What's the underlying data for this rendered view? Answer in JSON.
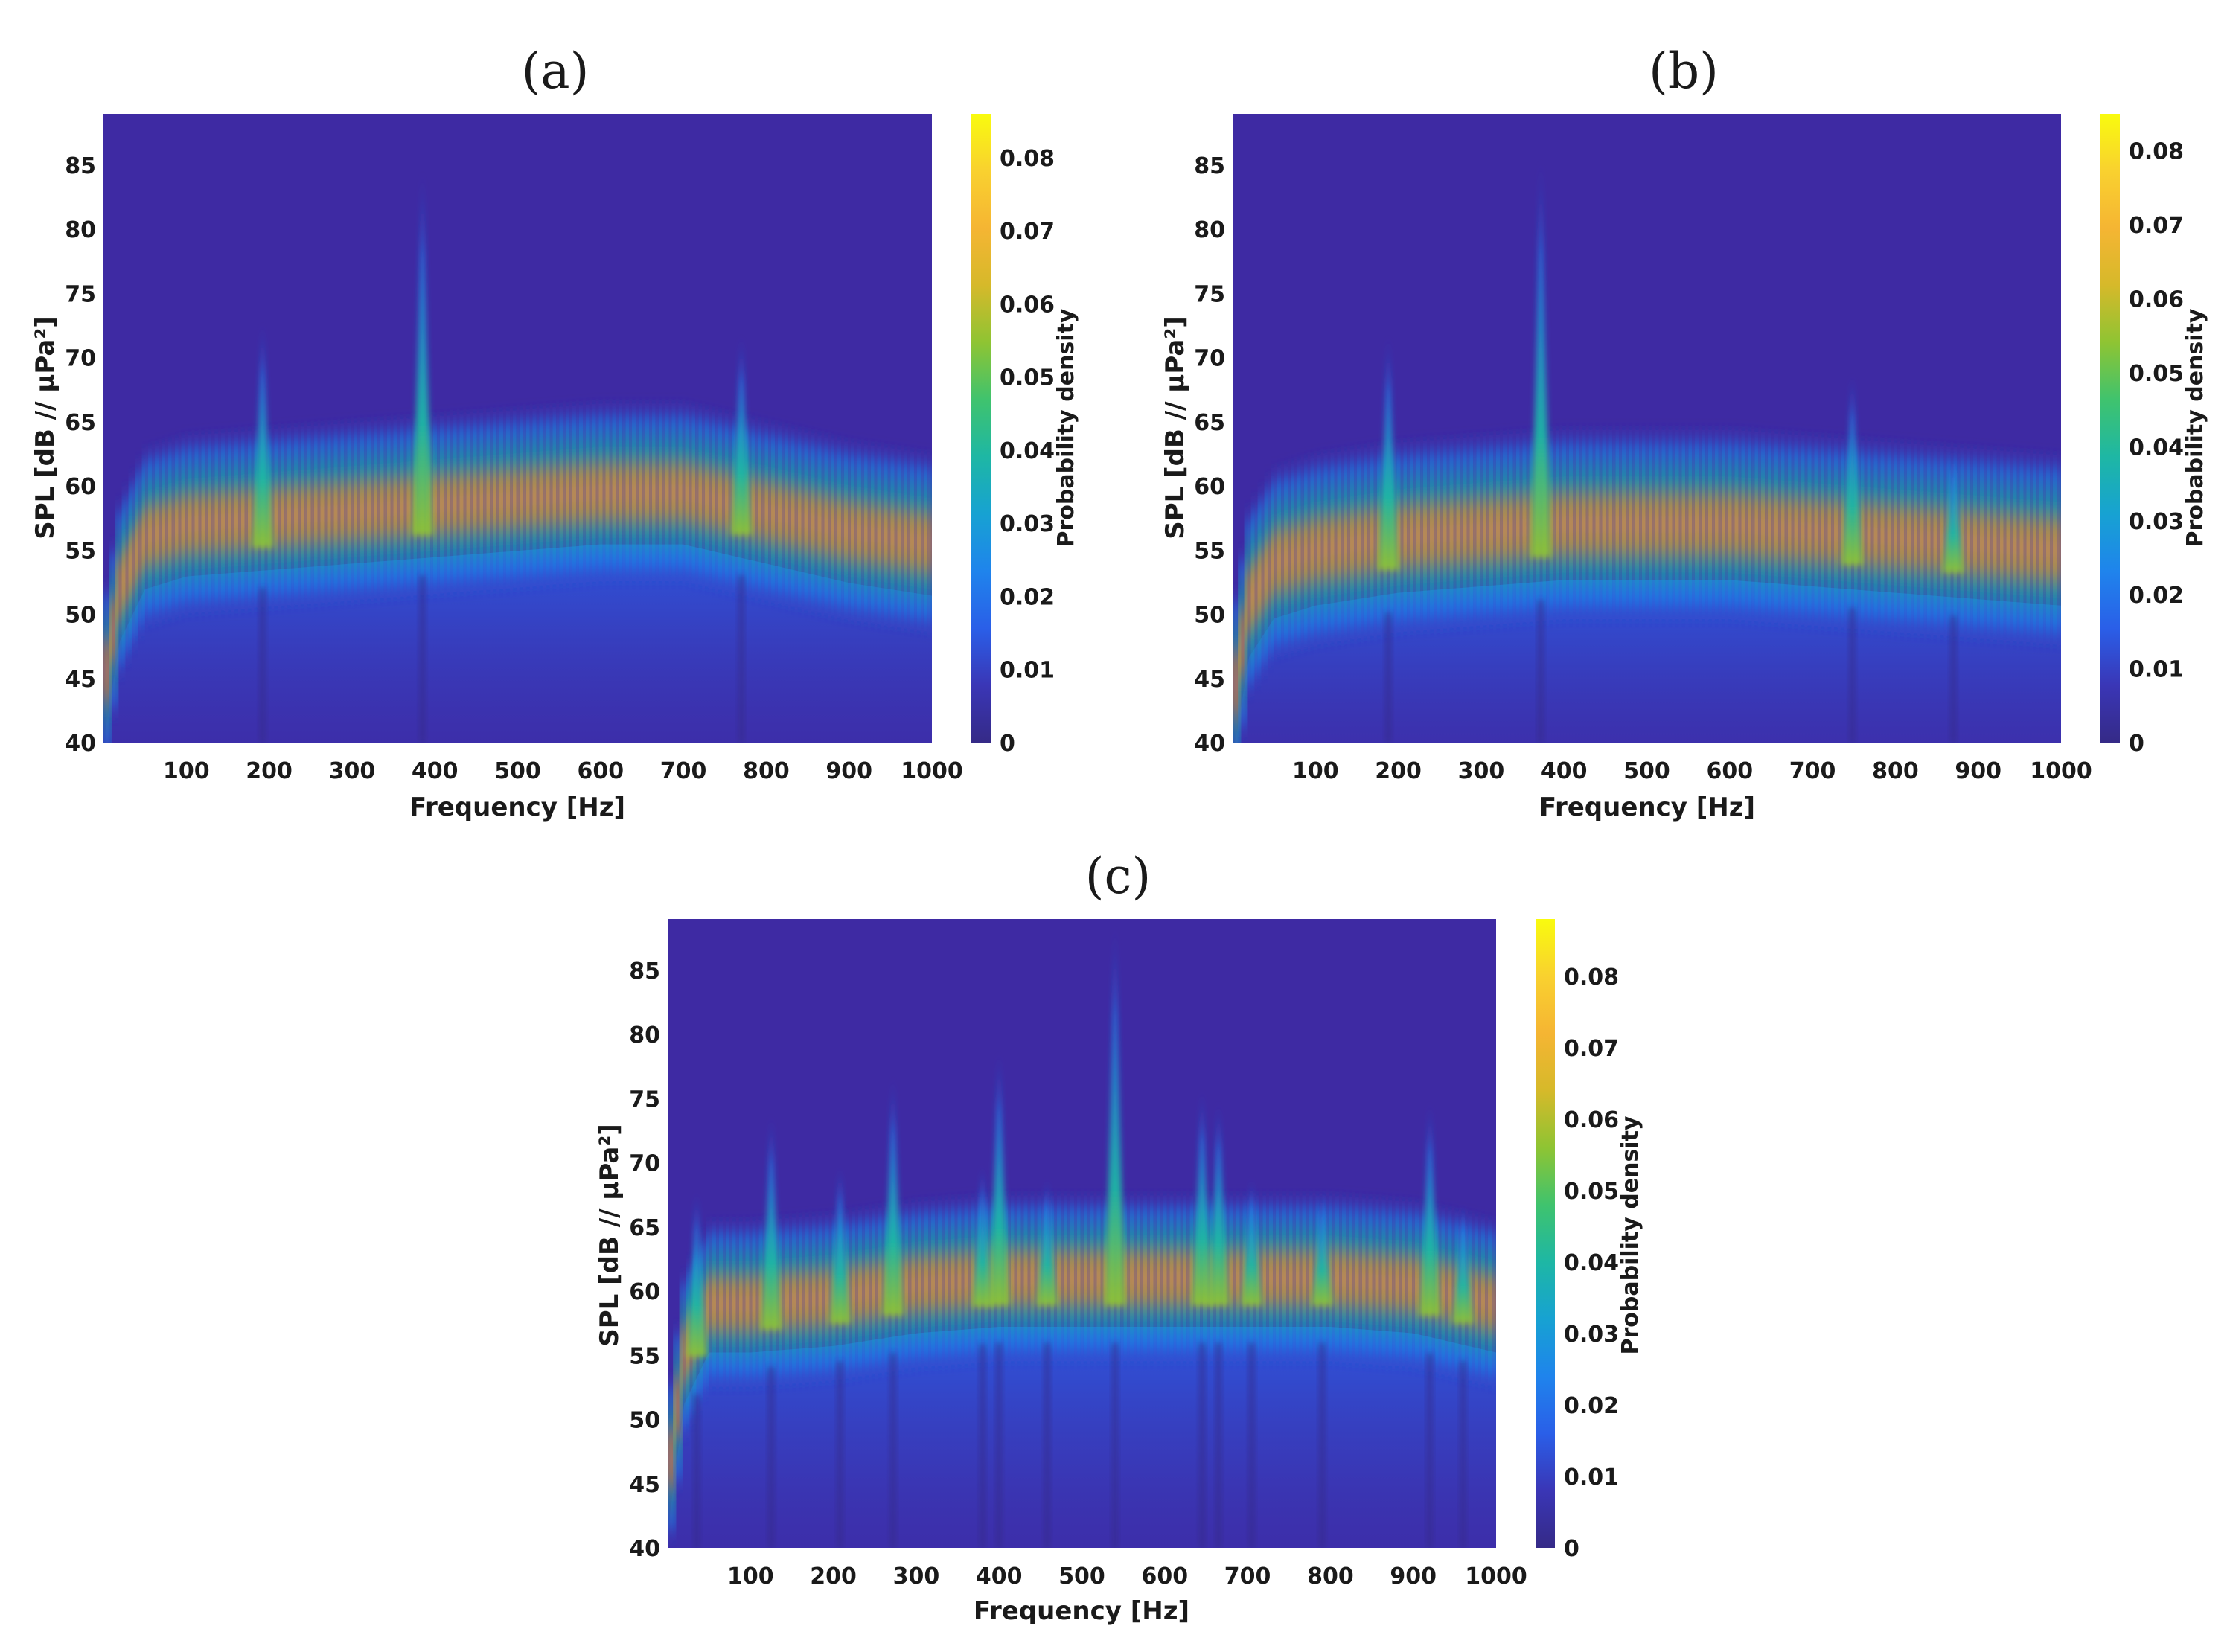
{
  "colors": {
    "background": "#3e2aa3",
    "parula": [
      "#352a87",
      "#3a36b6",
      "#2a5fe8",
      "#1f84ec",
      "#17a2d2",
      "#1eb7a4",
      "#3fc36e",
      "#8ec433",
      "#d6b92a",
      "#f5b533",
      "#f9d12f",
      "#f9fb0e"
    ]
  },
  "chart_data": [
    {
      "panel": "a",
      "type": "heatmap",
      "title": "(a)",
      "xlabel": "Frequency [Hz]",
      "ylabel": "SPL [dB // μPa²]",
      "xlim": [
        0,
        1000
      ],
      "ylim": [
        40,
        89
      ],
      "x_ticks": [
        "100",
        "200",
        "300",
        "400",
        "500",
        "600",
        "700",
        "800",
        "900",
        "1000"
      ],
      "y_ticks": [
        "40",
        "45",
        "50",
        "55",
        "60",
        "65",
        "70",
        "75",
        "80",
        "85"
      ],
      "colorbar": {
        "label": "Probability density",
        "range": [
          0,
          0.086
        ],
        "ticks": [
          "0",
          "0.01",
          "0.02",
          "0.03",
          "0.04",
          "0.05",
          "0.06",
          "0.07",
          "0.08"
        ]
      },
      "ridge": [
        [
          0,
          44
        ],
        [
          20,
          52
        ],
        [
          50,
          56
        ],
        [
          100,
          57
        ],
        [
          200,
          57.5
        ],
        [
          300,
          58
        ],
        [
          400,
          58.5
        ],
        [
          500,
          59
        ],
        [
          600,
          59.5
        ],
        [
          700,
          59.5
        ],
        [
          800,
          58
        ],
        [
          900,
          56.5
        ],
        [
          1000,
          55.5
        ]
      ],
      "band_halfwidth": 4.5,
      "peaks": [
        {
          "freq": 192,
          "top": 73
        },
        {
          "freq": 385,
          "top": 85
        },
        {
          "freq": 770,
          "top": 72
        }
      ]
    },
    {
      "panel": "b",
      "type": "heatmap",
      "title": "(b)",
      "xlabel": "Frequency [Hz]",
      "ylabel": "SPL [dB // μPa²]",
      "xlim": [
        0,
        1000
      ],
      "ylim": [
        40,
        89
      ],
      "x_ticks": [
        "100",
        "200",
        "300",
        "400",
        "500",
        "600",
        "700",
        "800",
        "900",
        "1000"
      ],
      "y_ticks": [
        "40",
        "45",
        "50",
        "55",
        "60",
        "65",
        "70",
        "75",
        "80",
        "85"
      ],
      "colorbar": {
        "label": "Probability density",
        "range": [
          0,
          0.085
        ],
        "ticks": [
          "0",
          "0.01",
          "0.02",
          "0.03",
          "0.04",
          "0.05",
          "0.06",
          "0.07",
          "0.08"
        ]
      },
      "ridge": [
        [
          0,
          43
        ],
        [
          20,
          51
        ],
        [
          50,
          54
        ],
        [
          100,
          55
        ],
        [
          200,
          56
        ],
        [
          300,
          56.5
        ],
        [
          400,
          57
        ],
        [
          500,
          57
        ],
        [
          600,
          57
        ],
        [
          700,
          56.5
        ],
        [
          800,
          56
        ],
        [
          900,
          55.5
        ],
        [
          1000,
          55
        ]
      ],
      "band_halfwidth": 4.8,
      "peaks": [
        {
          "freq": 188,
          "top": 72
        },
        {
          "freq": 372,
          "top": 86
        },
        {
          "freq": 748,
          "top": 69
        },
        {
          "freq": 870,
          "top": 63
        }
      ]
    },
    {
      "panel": "c",
      "type": "heatmap",
      "title": "(c)",
      "xlabel": "Frequency [Hz]",
      "ylabel": "SPL [dB // μPa²]",
      "xlim": [
        0,
        1000
      ],
      "ylim": [
        40,
        89
      ],
      "x_ticks": [
        "100",
        "200",
        "300",
        "400",
        "500",
        "600",
        "700",
        "800",
        "900",
        "1000"
      ],
      "y_ticks": [
        "40",
        "45",
        "50",
        "55",
        "60",
        "65",
        "70",
        "75",
        "80",
        "85"
      ],
      "colorbar": {
        "label": "Probability density",
        "range": [
          0,
          0.088
        ],
        "ticks": [
          "0",
          "0.01",
          "0.02",
          "0.03",
          "0.04",
          "0.05",
          "0.06",
          "0.07",
          "0.08"
        ]
      },
      "ridge": [
        [
          0,
          45
        ],
        [
          20,
          55
        ],
        [
          50,
          59
        ],
        [
          100,
          59
        ],
        [
          200,
          59.5
        ],
        [
          300,
          60.5
        ],
        [
          400,
          61
        ],
        [
          500,
          61
        ],
        [
          600,
          61
        ],
        [
          700,
          61
        ],
        [
          800,
          61
        ],
        [
          900,
          60.5
        ],
        [
          1000,
          59
        ]
      ],
      "band_halfwidth": 4.2,
      "peaks": [
        {
          "freq": 35,
          "top": 68
        },
        {
          "freq": 125,
          "top": 74
        },
        {
          "freq": 208,
          "top": 70
        },
        {
          "freq": 272,
          "top": 77
        },
        {
          "freq": 380,
          "top": 70
        },
        {
          "freq": 400,
          "top": 79
        },
        {
          "freq": 458,
          "top": 69
        },
        {
          "freq": 540,
          "top": 89
        },
        {
          "freq": 645,
          "top": 76
        },
        {
          "freq": 665,
          "top": 75
        },
        {
          "freq": 705,
          "top": 69
        },
        {
          "freq": 790,
          "top": 68
        },
        {
          "freq": 920,
          "top": 75
        },
        {
          "freq": 960,
          "top": 67
        }
      ]
    }
  ]
}
